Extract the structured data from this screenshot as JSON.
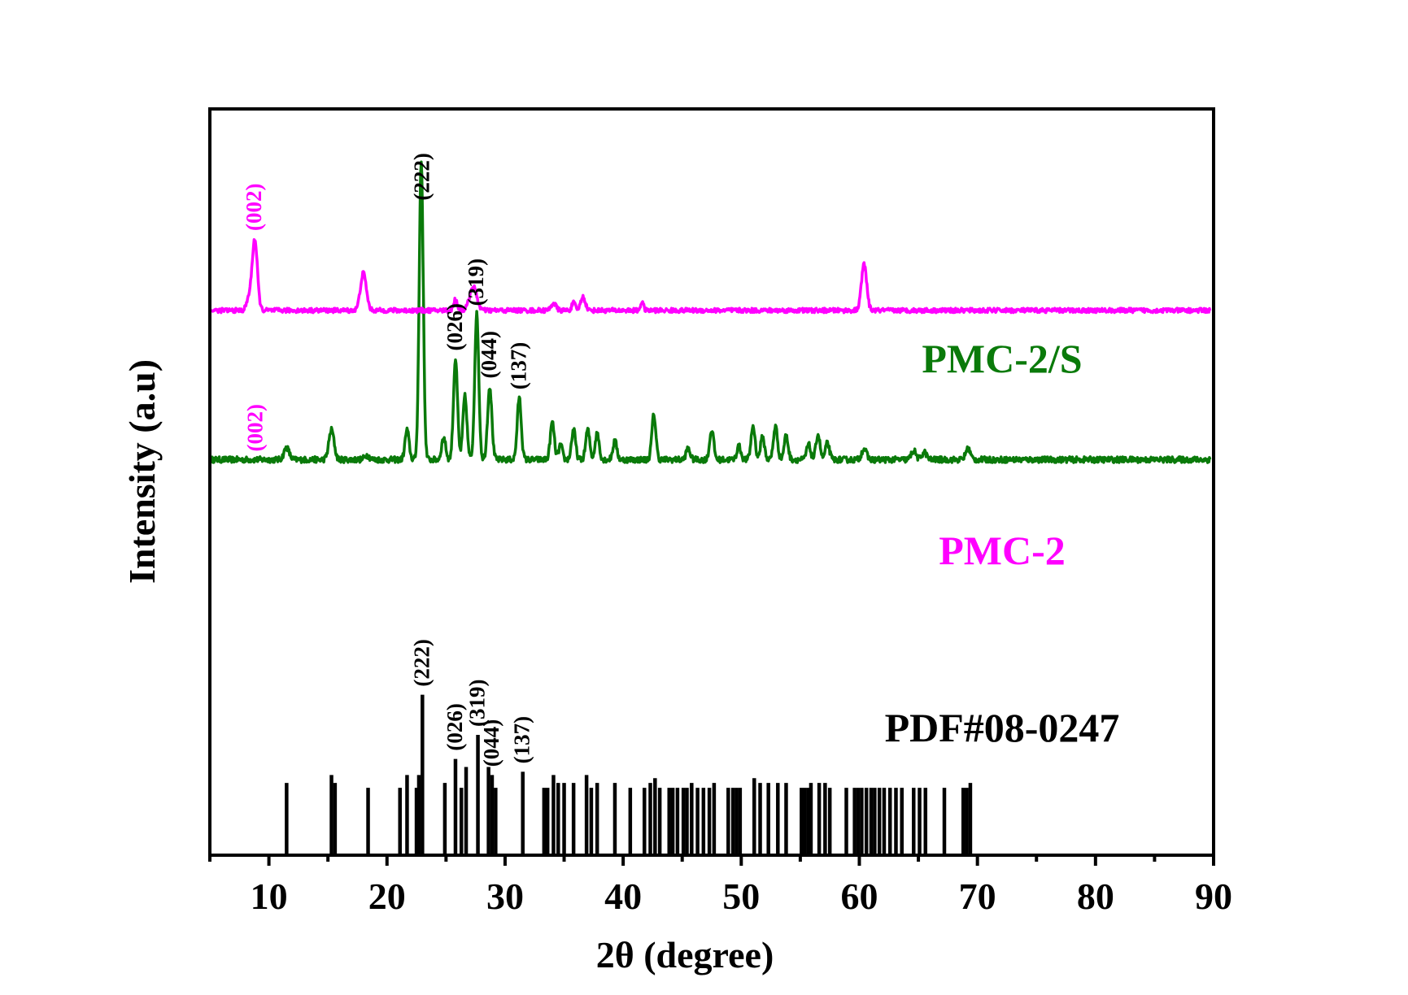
{
  "chart_data": {
    "type": "line",
    "xlabel": "2θ (degree)",
    "ylabel": "Intensity (a.u)",
    "xlim": [
      5,
      90
    ],
    "x_ticks": [
      10,
      20,
      30,
      40,
      50,
      60,
      70,
      80,
      90
    ],
    "x_tick_labels": [
      "10",
      "20",
      "30",
      "40",
      "50",
      "60",
      "70",
      "80",
      "90"
    ],
    "grid": false,
    "colors": {
      "pmc2s": "#0a7a0a",
      "pmc2": "#ff00ff",
      "reference": "#000000"
    },
    "series": [
      {
        "name": "PMC-2/S",
        "baseline": 0.53,
        "noise": 0.004,
        "peaks": [
          [
            11.5,
            0.016,
            0.22
          ],
          [
            15.3,
            0.04,
            0.22
          ],
          [
            18.3,
            0.006,
            0.2
          ],
          [
            21.7,
            0.04,
            0.17
          ],
          [
            22.9,
            0.4,
            0.17
          ],
          [
            24.8,
            0.03,
            0.17
          ],
          [
            25.8,
            0.135,
            0.17
          ],
          [
            26.6,
            0.085,
            0.17
          ],
          [
            27.6,
            0.195,
            0.17
          ],
          [
            28.7,
            0.098,
            0.18
          ],
          [
            31.2,
            0.083,
            0.17
          ],
          [
            34.0,
            0.05,
            0.17
          ],
          [
            34.7,
            0.02,
            0.15
          ],
          [
            35.8,
            0.04,
            0.17
          ],
          [
            37.0,
            0.04,
            0.17
          ],
          [
            37.8,
            0.035,
            0.17
          ],
          [
            39.3,
            0.025,
            0.17
          ],
          [
            42.6,
            0.06,
            0.17
          ],
          [
            45.5,
            0.015,
            0.17
          ],
          [
            47.5,
            0.04,
            0.17
          ],
          [
            49.8,
            0.018,
            0.17
          ],
          [
            51.0,
            0.045,
            0.17
          ],
          [
            51.8,
            0.03,
            0.17
          ],
          [
            52.9,
            0.045,
            0.17
          ],
          [
            53.8,
            0.032,
            0.17
          ],
          [
            55.7,
            0.02,
            0.17
          ],
          [
            56.5,
            0.034,
            0.17
          ],
          [
            57.3,
            0.022,
            0.17
          ],
          [
            60.4,
            0.015,
            0.2
          ],
          [
            64.6,
            0.012,
            0.2
          ],
          [
            65.5,
            0.01,
            0.2
          ],
          [
            69.2,
            0.015,
            0.2
          ]
        ]
      },
      {
        "name": "PMC-2",
        "baseline": 0.73,
        "noise": 0.003,
        "peaks": [
          [
            8.3,
            0.015,
            0.2
          ],
          [
            8.8,
            0.095,
            0.22
          ],
          [
            18.0,
            0.05,
            0.25
          ],
          [
            25.8,
            0.015,
            0.15
          ],
          [
            27.3,
            0.032,
            0.3
          ],
          [
            34.1,
            0.01,
            0.2
          ],
          [
            35.8,
            0.01,
            0.15
          ],
          [
            36.6,
            0.018,
            0.2
          ],
          [
            41.6,
            0.012,
            0.12
          ],
          [
            60.4,
            0.062,
            0.22
          ]
        ]
      }
    ],
    "reference_pattern": {
      "name": "PDF#08-0247",
      "positions": [
        11.5,
        15.3,
        15.6,
        18.4,
        21.1,
        21.7,
        22.5,
        22.7,
        23.0,
        24.9,
        25.8,
        26.3,
        26.7,
        27.7,
        28.6,
        28.9,
        29.2,
        31.5,
        33.3,
        33.6,
        34.1,
        34.5,
        35.0,
        35.8,
        36.9,
        37.3,
        37.8,
        39.3,
        40.6,
        41.8,
        42.3,
        42.7,
        43.1,
        43.9,
        44.2,
        44.6,
        45.1,
        45.4,
        45.8,
        46.3,
        46.8,
        47.3,
        47.7,
        48.9,
        49.3,
        49.6,
        49.9,
        51.1,
        51.6,
        52.3,
        53.1,
        53.8,
        55.1,
        55.4,
        55.7,
        55.9,
        56.6,
        57.1,
        57.5,
        58.9,
        59.6,
        59.9,
        60.2,
        60.6,
        61.0,
        61.3,
        61.7,
        62.1,
        62.6,
        63.1,
        63.6,
        64.6,
        65.1,
        65.6,
        67.2,
        68.8,
        69.1,
        69.4
      ],
      "intensities": [
        0.45,
        0.5,
        0.45,
        0.42,
        0.42,
        0.5,
        0.42,
        0.5,
        1.0,
        0.45,
        0.6,
        0.42,
        0.55,
        0.75,
        0.55,
        0.5,
        0.42,
        0.52,
        0.42,
        0.42,
        0.5,
        0.45,
        0.45,
        0.45,
        0.5,
        0.42,
        0.45,
        0.45,
        0.42,
        0.42,
        0.45,
        0.48,
        0.42,
        0.42,
        0.42,
        0.42,
        0.42,
        0.42,
        0.45,
        0.42,
        0.42,
        0.42,
        0.45,
        0.42,
        0.42,
        0.42,
        0.42,
        0.48,
        0.45,
        0.45,
        0.45,
        0.45,
        0.42,
        0.42,
        0.42,
        0.45,
        0.45,
        0.45,
        0.42,
        0.42,
        0.42,
        0.42,
        0.42,
        0.42,
        0.42,
        0.42,
        0.42,
        0.42,
        0.42,
        0.42,
        0.42,
        0.42,
        0.42,
        0.42,
        0.42,
        0.42,
        0.42,
        0.45
      ]
    },
    "series_labels": [
      {
        "text": "PMC-2/S",
        "series": "pmc2s"
      },
      {
        "text": "PMC-2",
        "series": "pmc2"
      },
      {
        "text": "PDF#08-0247",
        "series": "reference"
      }
    ],
    "annotations": [
      {
        "text": "(002)",
        "x": 8.9,
        "series": "pmc2s",
        "color": "#ff00ff"
      },
      {
        "text": "(002)",
        "x": 8.8,
        "series": "pmc2",
        "color": "#ff00ff"
      },
      {
        "text": "(222)",
        "x": 23.0,
        "series": "pmc2s",
        "color": "#000000"
      },
      {
        "text": "(026)",
        "x": 25.8,
        "series": "pmc2s",
        "color": "#000000"
      },
      {
        "text": "(319)",
        "x": 27.6,
        "series": "pmc2s",
        "color": "#000000"
      },
      {
        "text": "(044)",
        "x": 28.7,
        "series": "pmc2s",
        "color": "#000000"
      },
      {
        "text": "(137)",
        "x": 31.2,
        "series": "pmc2s",
        "color": "#000000"
      },
      {
        "text": "(222)",
        "x": 23.0,
        "series": "reference",
        "color": "#000000"
      },
      {
        "text": "(026)",
        "x": 25.8,
        "series": "reference",
        "color": "#000000"
      },
      {
        "text": "(319)",
        "x": 27.7,
        "series": "reference",
        "color": "#000000"
      },
      {
        "text": "(044)",
        "x": 28.9,
        "series": "reference",
        "color": "#000000"
      },
      {
        "text": "(137)",
        "x": 31.5,
        "series": "reference",
        "color": "#000000"
      }
    ]
  }
}
